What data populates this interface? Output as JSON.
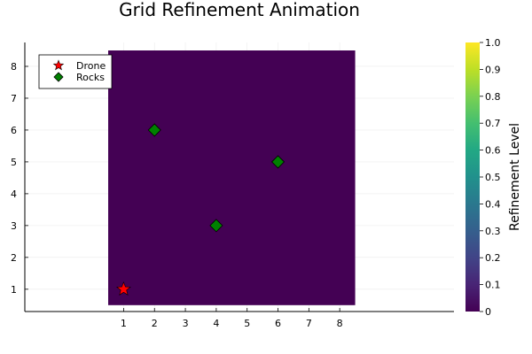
{
  "chart_data": {
    "type": "heatmap",
    "title": "Grid Refinement Animation",
    "xlabel": "",
    "ylabel": "",
    "colorbar": {
      "label": "Refinement Level",
      "range": [
        0,
        1.0
      ],
      "ticks": [
        "0",
        "0.1",
        "0.2",
        "0.3",
        "0.4",
        "0.5",
        "0.6",
        "0.7",
        "0.8",
        "0.9",
        "1.0"
      ],
      "colormap": "viridis"
    },
    "x_ticks": [
      "1",
      "2",
      "3",
      "4",
      "5",
      "6",
      "7",
      "8"
    ],
    "y_ticks": [
      "1",
      "2",
      "3",
      "4",
      "5",
      "6",
      "7",
      "8"
    ],
    "xlim": [
      -2.2,
      11.7
    ],
    "ylim": [
      0.3,
      8.75
    ],
    "heatmap": {
      "x_range": [
        0.5,
        8.5
      ],
      "y_range": [
        0.5,
        8.5
      ],
      "value": 0,
      "color": "#440154"
    },
    "series": [
      {
        "name": "Drone",
        "marker": "star",
        "color": "#ff0000",
        "points": [
          [
            1,
            1
          ]
        ]
      },
      {
        "name": "Rocks",
        "marker": "diamond",
        "color": "#008000",
        "points": [
          [
            2,
            6
          ],
          [
            4,
            3
          ],
          [
            6,
            5
          ]
        ]
      }
    ],
    "grid": true,
    "legend_position": "top-left"
  }
}
